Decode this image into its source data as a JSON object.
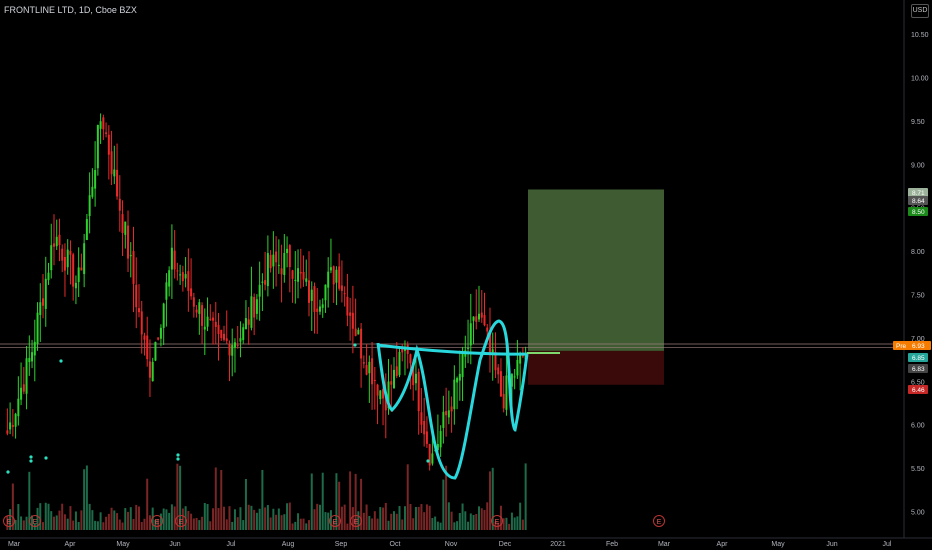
{
  "header": {
    "symbol_title": "FRONTLINE LTD, 1D, Cboe BZX",
    "currency": "USD"
  },
  "chart_data": {
    "type": "candlestick",
    "title": "FRONTLINE LTD, 1D, Cboe BZX",
    "ylim": [
      4.9,
      10.7
    ],
    "y_ticks": [
      "10.50",
      "10.00",
      "9.50",
      "9.00",
      "8.50",
      "8.00",
      "7.50",
      "7.00",
      "6.50",
      "6.00",
      "5.50",
      "5.00"
    ],
    "x_ticks": [
      "Mar",
      "Apr",
      "May",
      "Jun",
      "Jul",
      "Aug",
      "Sep",
      "Oct",
      "Nov",
      "Dec",
      "2021",
      "Feb",
      "Mar",
      "Apr",
      "May",
      "Jun",
      "Jul"
    ],
    "price_labels": [
      {
        "tag": "Pre",
        "value": "6.93",
        "color": "#f57c00"
      },
      {
        "value": "6.85",
        "color": "#26a69a"
      },
      {
        "value": "6.83",
        "color": "#444444"
      },
      {
        "value": "8.71",
        "color": "#9cb29a"
      },
      {
        "value": "8.64",
        "color": "#555555"
      },
      {
        "value": "8.50",
        "color": "#1b8a1b"
      },
      {
        "value": "6.46",
        "color": "#c62828"
      }
    ],
    "position_tool": {
      "entry": 6.85,
      "target": 8.71,
      "stop": 6.46
    },
    "horizontal_lines": [
      6.93,
      6.89
    ],
    "earnings_markers": [
      "E",
      "E",
      "E",
      "E",
      "E",
      "E",
      "E",
      "E"
    ],
    "series": [
      {
        "name": "FRONTLINE LTD",
        "points": [
          {
            "x": "Mar",
            "y": 5.9
          },
          {
            "x": "Mar",
            "y": 6.8
          },
          {
            "x": "Apr",
            "y": 8.2
          },
          {
            "x": "Apr",
            "y": 7.6
          },
          {
            "x": "May",
            "y": 9.6
          },
          {
            "x": "May",
            "y": 8.2
          },
          {
            "x": "Jun",
            "y": 6.6
          },
          {
            "x": "Jun",
            "y": 7.9
          },
          {
            "x": "Jun",
            "y": 7.4
          },
          {
            "x": "Jul",
            "y": 6.9
          },
          {
            "x": "Jul",
            "y": 7.05
          },
          {
            "x": "Aug",
            "y": 7.8
          },
          {
            "x": "Aug",
            "y": 7.9
          },
          {
            "x": "Sep",
            "y": 7.4
          },
          {
            "x": "Sep",
            "y": 7.8
          },
          {
            "x": "Sep",
            "y": 6.9
          },
          {
            "x": "Oct",
            "y": 6.3
          },
          {
            "x": "Oct",
            "y": 6.9
          },
          {
            "x": "Nov",
            "y": 5.6
          },
          {
            "x": "Nov",
            "y": 6.4
          },
          {
            "x": "Dec",
            "y": 7.3
          },
          {
            "x": "Dec",
            "y": 6.3
          },
          {
            "x": "Dec",
            "y": 6.85
          }
        ]
      }
    ]
  }
}
